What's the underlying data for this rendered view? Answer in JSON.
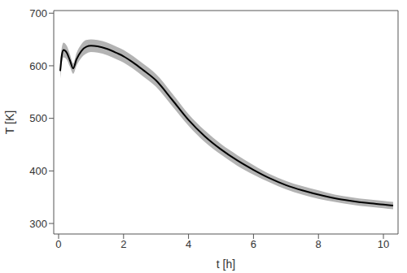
{
  "chart_data": {
    "type": "line",
    "x_label": "t [h]",
    "y_label": "T [K]",
    "xlim": [
      -0.15,
      10.45
    ],
    "xticks": [
      0,
      2,
      4,
      6,
      8,
      10
    ],
    "ylim": [
      280,
      705
    ],
    "yticks": [
      300,
      400,
      500,
      600,
      700
    ],
    "grid": false,
    "series": [
      {
        "name": "T",
        "color": "#000000",
        "x": [
          0.05,
          0.1,
          0.15,
          0.25,
          0.35,
          0.45,
          0.55,
          0.7,
          0.85,
          1.0,
          1.2,
          1.5,
          1.8,
          2.0,
          2.3,
          2.6,
          3.0,
          3.5,
          4.0,
          4.5,
          5.0,
          5.5,
          6.0,
          6.5,
          7.0,
          7.5,
          8.0,
          8.5,
          9.0,
          9.5,
          10.0,
          10.3
        ],
        "values": [
          590,
          620,
          630,
          625,
          610,
          595,
          612,
          628,
          636,
          638,
          637,
          632,
          624,
          618,
          606,
          592,
          572,
          535,
          497,
          466,
          441,
          420,
          402,
          386,
          373,
          363,
          355,
          348,
          343,
          339,
          336,
          334
        ],
        "band_color": "#b3b3b3",
        "band_lower": [
          576,
          605,
          616,
          612,
          598,
          585,
          600,
          615,
          623,
          626,
          625,
          620,
          612,
          606,
          594,
          580,
          560,
          523,
          486,
          455,
          431,
          410,
          393,
          378,
          365,
          355,
          347,
          341,
          336,
          332,
          329,
          327
        ],
        "band_upper": [
          604,
          635,
          644,
          638,
          622,
          605,
          624,
          641,
          649,
          650,
          649,
          644,
          636,
          630,
          618,
          604,
          584,
          547,
          508,
          477,
          451,
          430,
          411,
          394,
          381,
          371,
          363,
          355,
          350,
          346,
          343,
          341
        ]
      }
    ]
  }
}
